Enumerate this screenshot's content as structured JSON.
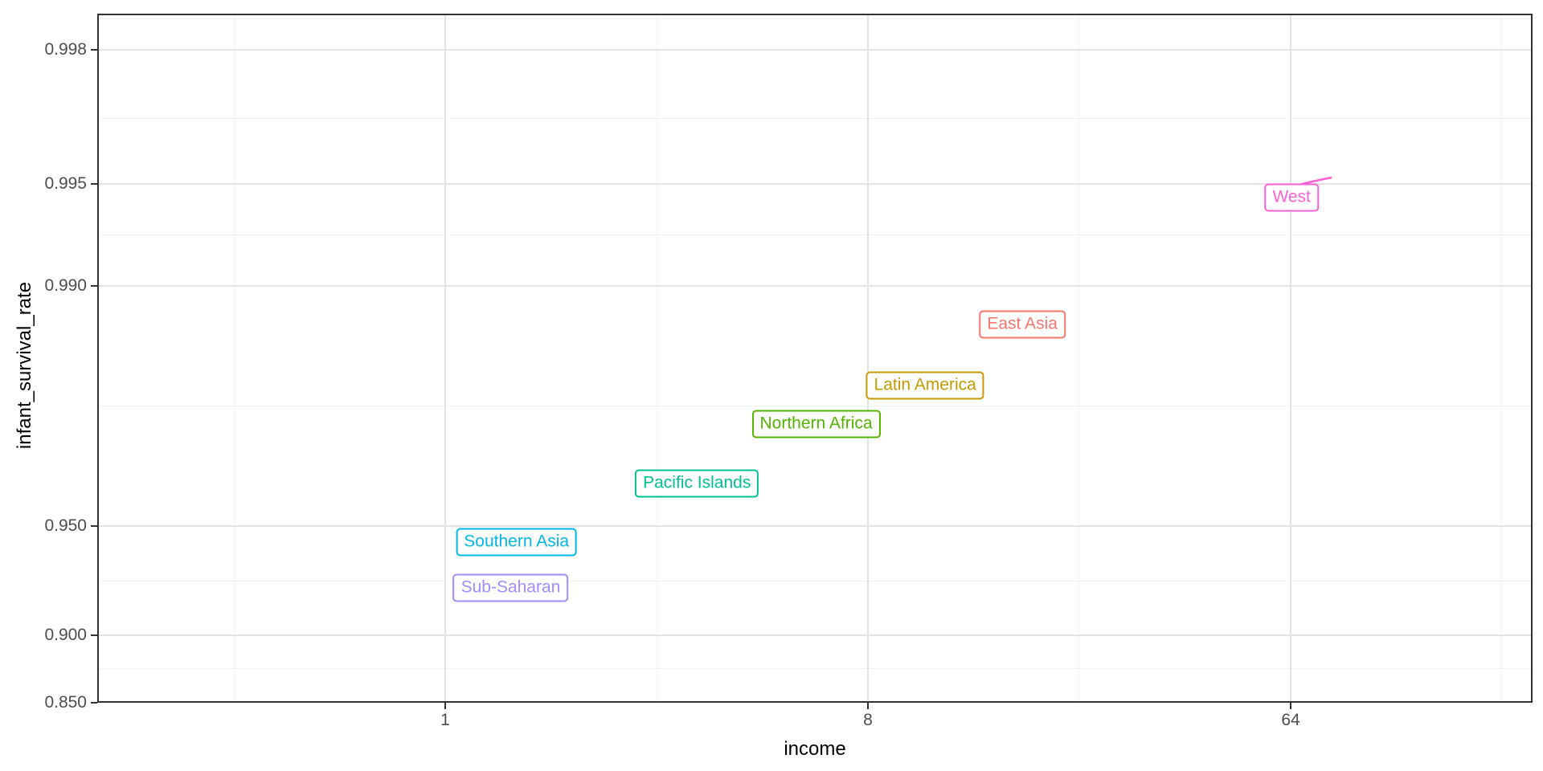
{
  "style": {
    "background": "#FFFFFF",
    "panel_border": "#333333",
    "grid_major": "#E3E3E3",
    "grid_minor": "#F0F0F0",
    "tick_mark": "#333333",
    "tick_label": "#4D4D4D",
    "axis_title": "#000000"
  },
  "chart_data": {
    "type": "scatter",
    "subtype": "labeled-points (geom_label)",
    "title": "",
    "xlabel": "income",
    "ylabel": "infant_survival_rate",
    "x_scale": "log base 8",
    "y_scale": "logit",
    "xlim": [
      0.18,
      211
    ],
    "ylim": [
      0.85,
      0.9984
    ],
    "grid": true,
    "legend": "none",
    "x_ticks": [
      1,
      8,
      64
    ],
    "x_tick_labels": [
      "1",
      "8",
      "64"
    ],
    "x_minor_breaks": [
      0.354,
      2.83,
      22.6,
      181
    ],
    "y_ticks": [
      0.85,
      0.9,
      0.95,
      0.99,
      0.995,
      0.998
    ],
    "y_tick_labels": [
      "0.850",
      "0.900",
      "0.950",
      "0.990",
      "0.995",
      "0.998"
    ],
    "y_minor_breaks": [
      0.8772,
      0.929,
      0.9775,
      0.9929,
      0.9968,
      0.99838
    ],
    "series": [
      {
        "label": "West",
        "color": "#FB61D7",
        "income": 64.3,
        "rate": 0.9945,
        "leader_to": {
          "income": 78,
          "rate": 0.9952
        }
      },
      {
        "label": "East Asia",
        "color": "#F8766D",
        "income": 17.1,
        "rate": 0.987
      },
      {
        "label": "Latin America",
        "color": "#C49A00",
        "income": 10.6,
        "rate": 0.9804
      },
      {
        "label": "Northern Africa",
        "color": "#53B400",
        "income": 6.2,
        "rate": 0.9746
      },
      {
        "label": "Pacific Islands",
        "color": "#00C094",
        "income": 3.45,
        "rate": 0.9622
      },
      {
        "label": "Southern Asia",
        "color": "#00B6EB",
        "income": 1.42,
        "rate": 0.9447
      },
      {
        "label": "Sub-Saharan",
        "color": "#A58AFF",
        "income": 1.38,
        "rate": 0.9258
      }
    ]
  }
}
